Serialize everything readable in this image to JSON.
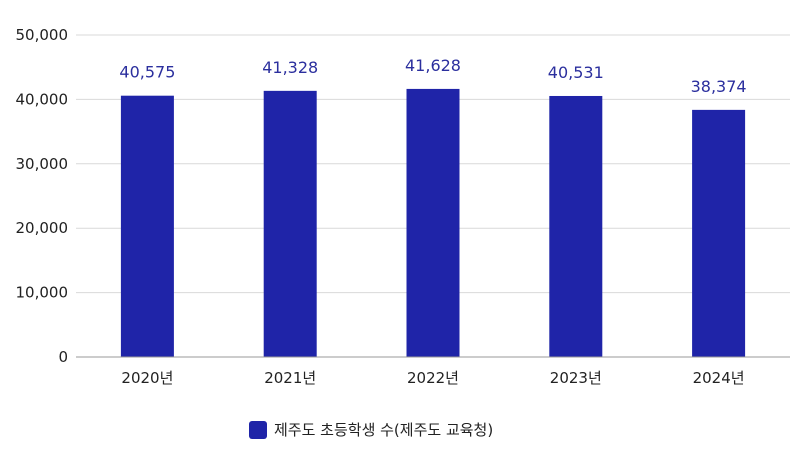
{
  "chart_data": {
    "type": "bar",
    "categories": [
      "2020년",
      "2021년",
      "2022년",
      "2023년",
      "2024년"
    ],
    "series": [
      {
        "name": "제주도 초등학생 수(제주도 교육청)",
        "values": [
          40575,
          41328,
          41628,
          40531,
          38374
        ],
        "value_labels": [
          "40,575",
          "41,328",
          "41,628",
          "40,531",
          "38,374"
        ],
        "color": "#1f24a8"
      }
    ],
    "ylim": [
      0,
      50000
    ],
    "yticks": [
      0,
      10000,
      20000,
      30000,
      40000,
      50000
    ],
    "ytick_labels": [
      "0",
      "10,000",
      "20,000",
      "30,000",
      "40,000",
      "50,000"
    ],
    "grid": true,
    "legend_position": "bottom",
    "colors": {
      "bar": "#1f24a8",
      "data_label": "#2b2f9e",
      "grid": "#d9d9d9",
      "axis": "#999999"
    }
  }
}
